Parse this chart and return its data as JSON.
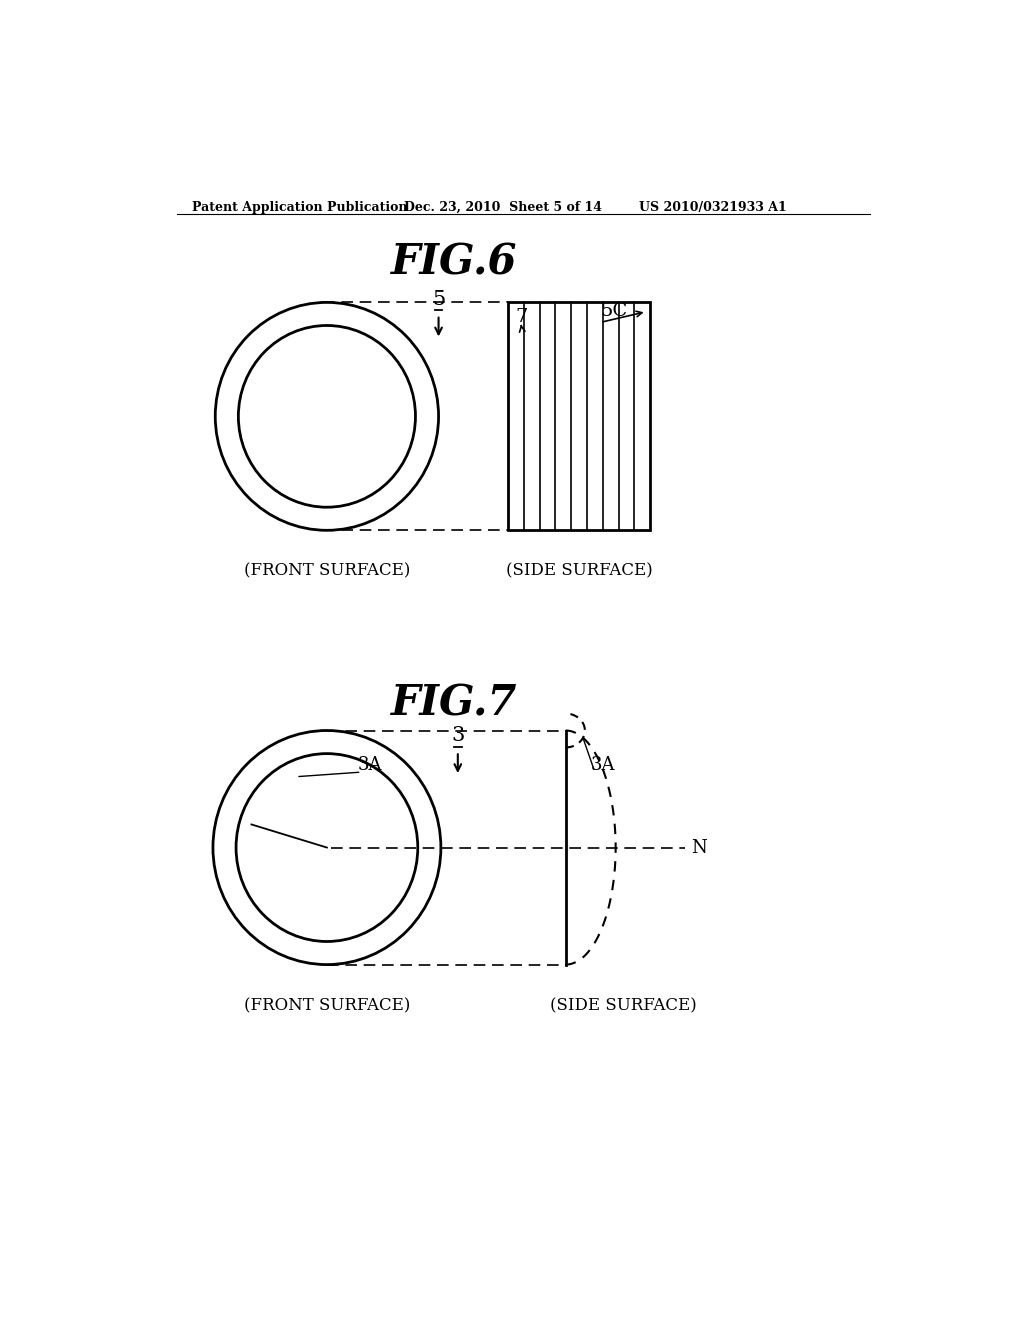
{
  "bg_color": "#ffffff",
  "header_left": "Patent Application Publication",
  "header_mid": "Dec. 23, 2010  Sheet 5 of 14",
  "header_right": "US 2010/0321933 A1",
  "fig6_title": "FIG.6",
  "fig7_title": "FIG.7",
  "front_surface_label": "(FRONT SURFACE)",
  "side_surface_label": "(SIDE SURFACE)"
}
